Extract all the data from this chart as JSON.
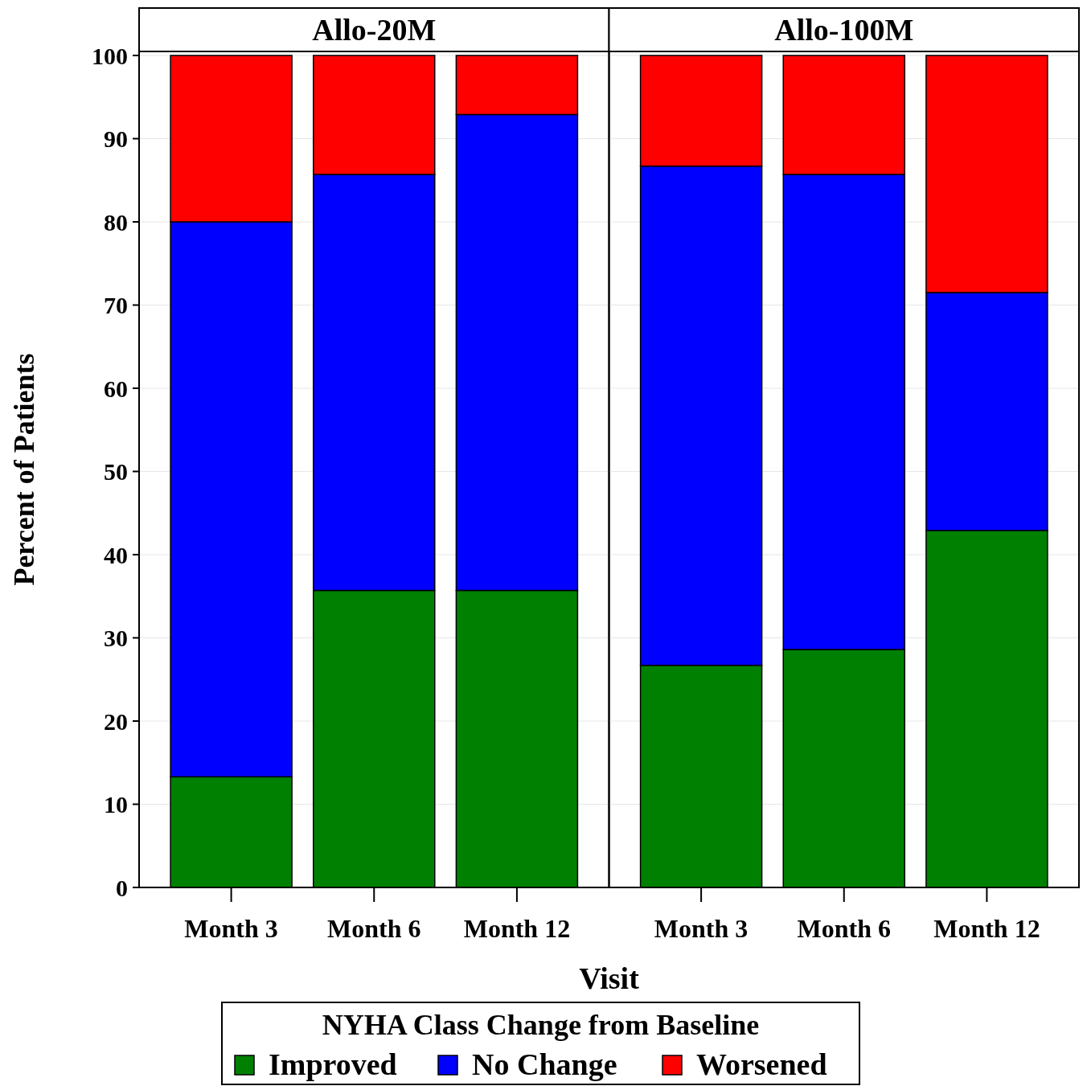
{
  "chart_data": [
    {
      "type": "bar",
      "title": "Allo-20M",
      "xlabel": "Visit",
      "ylabel": "Percent of Patients",
      "legend_title": "NYHA Class Change from Baseline",
      "legend": "bottom",
      "stacked": true,
      "grid": "y",
      "categories": [
        "Month 3",
        "Month 6",
        "Month 12"
      ],
      "ylim": [
        0,
        100
      ],
      "yticks": [
        0,
        10,
        20,
        30,
        40,
        50,
        60,
        70,
        80,
        90,
        100
      ],
      "series": [
        {
          "name": "Improved",
          "color": "#008000",
          "values": [
            13.3,
            35.7,
            35.7
          ]
        },
        {
          "name": "No Change",
          "color": "#0000ff",
          "values": [
            66.7,
            50,
            57.2
          ]
        },
        {
          "name": "Worsened",
          "color": "#ff0000",
          "values": [
            20,
            14.3,
            7.1
          ]
        }
      ]
    },
    {
      "type": "bar",
      "title": "Allo-100M",
      "stacked": true,
      "grid": "y",
      "tick_labels": "x",
      "categories": [
        "Month 3",
        "Month 6",
        "Month 12"
      ],
      "ylim": [
        0,
        100
      ],
      "yticks": [
        0,
        10,
        20,
        30,
        40,
        50,
        60,
        70,
        80,
        90,
        100
      ],
      "series": [
        {
          "color": "#008000",
          "values": [
            26.7,
            28.6,
            42.9
          ]
        },
        {
          "color": "#0000ff",
          "values": [
            60,
            57.1,
            28.6
          ]
        },
        {
          "color": "#ff0000",
          "values": [
            13.3,
            14.3,
            28.5
          ]
        }
      ]
    }
  ]
}
